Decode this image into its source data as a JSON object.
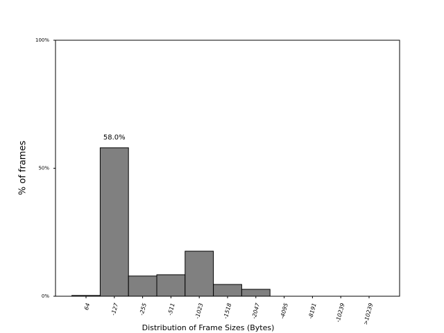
{
  "chart_data": {
    "type": "bar",
    "x_label": "Distribution of Frame Sizes (Bytes)",
    "y_label": "% of frames",
    "categories": [
      "64",
      "-127",
      "-255",
      "-511",
      "-1023",
      "-1518",
      "-2047",
      "-4095",
      "-8191",
      "-10239",
      ">10239"
    ],
    "values": [
      0.3,
      58.0,
      7.9,
      8.4,
      17.6,
      4.6,
      2.7,
      0,
      0,
      0,
      0
    ],
    "value_labels": [
      null,
      "58.0%",
      null,
      null,
      null,
      null,
      null,
      null,
      null,
      null,
      null
    ],
    "color": "#808080",
    "ylim": [
      0,
      100
    ],
    "yticks": [
      {
        "value": 0,
        "label": "0%"
      },
      {
        "value": 50,
        "label": "50%"
      },
      {
        "value": 100,
        "label": "100%"
      }
    ]
  }
}
